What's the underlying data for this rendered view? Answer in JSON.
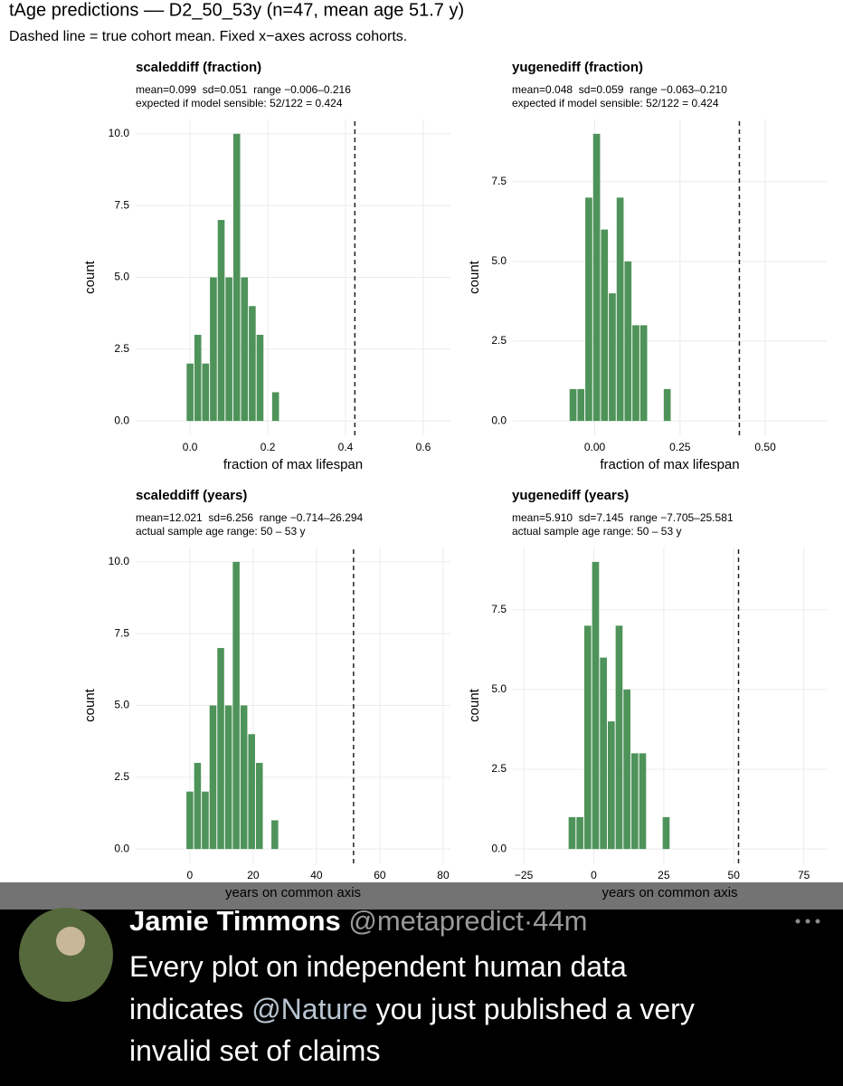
{
  "title": "tAge predictions –– D2_50_53y (n=47, mean age 51.7 y)",
  "subtitle": "Dashed line = true cohort mean. Fixed x−axes across cohorts.",
  "chart_data": [
    {
      "type": "histogram",
      "title": "scaleddiff (fraction)",
      "stats": "mean=0.099  sd=0.051  range −0.006–0.216",
      "note": "expected if model sensible: 52/122 = 0.424",
      "xlabel": "fraction of max lifespan",
      "ylabel": "count",
      "color": "#4e9359",
      "grid": true,
      "bins": [
        -0.01,
        0.01,
        0.03,
        0.05,
        0.07,
        0.09,
        0.11,
        0.13,
        0.15,
        0.17,
        0.19,
        0.21,
        0.23
      ],
      "values": [
        2,
        3,
        2,
        5,
        7,
        5,
        10,
        5,
        4,
        3,
        0,
        1
      ],
      "vline": 0.424,
      "xlim": [
        -0.14,
        0.67
      ],
      "xticks": [
        {
          "value": 0,
          "label": "0.0"
        },
        0.2,
        0.4,
        0.6
      ],
      "ylim": [
        -0.5,
        10.5
      ],
      "yticks": [
        {
          "value": 0,
          "label": "0.0"
        },
        2.5,
        {
          "value": 5,
          "label": "5.0"
        },
        7.5,
        {
          "value": 10,
          "label": "10.0"
        }
      ]
    },
    {
      "type": "histogram",
      "title": "yugenediff (fraction)",
      "stats": "mean=0.048  sd=0.059  range −0.063–0.210",
      "note": "expected if model sensible: 52/122 = 0.424",
      "xlabel": "fraction of max lifespan",
      "ylabel": "count",
      "color": "#4e9359",
      "grid": true,
      "bins": [
        -0.075,
        -0.052,
        -0.029,
        -0.006,
        0.017,
        0.04,
        0.063,
        0.086,
        0.109,
        0.132,
        0.155,
        0.178,
        0.201,
        0.224
      ],
      "values": [
        1,
        1,
        7,
        9,
        6,
        4,
        7,
        5,
        3,
        3,
        0,
        0,
        1
      ],
      "vline": 0.424,
      "xlim": [
        -0.24,
        0.68
      ],
      "xticks": [
        {
          "value": 0,
          "label": "0.00"
        },
        0.25,
        {
          "value": 0.5,
          "label": "0.50"
        }
      ],
      "ylim": [
        -0.45,
        9.45
      ],
      "yticks": [
        {
          "value": 0,
          "label": "0.0"
        },
        2.5,
        {
          "value": 5,
          "label": "5.0"
        },
        7.5
      ]
    },
    {
      "type": "histogram",
      "title": "scaleddiff (years)",
      "stats": "mean=12.021  sd=6.256  range −0.714–26.294",
      "note": "actual sample age range: 50 – 53 y",
      "xlabel": "years on common axis",
      "ylabel": "count",
      "color": "#4e9359",
      "grid": true,
      "bins": [
        -1.22,
        1.22,
        3.66,
        6.1,
        8.54,
        10.98,
        13.42,
        15.86,
        18.3,
        20.74,
        23.18,
        25.62,
        28.06
      ],
      "values": [
        2,
        3,
        2,
        5,
        7,
        5,
        10,
        5,
        4,
        3,
        0,
        1
      ],
      "vline": 51.7,
      "xlim": [
        -17.1,
        82.3
      ],
      "xticks": [
        0,
        20,
        40,
        60,
        80
      ],
      "ylim": [
        -0.5,
        10.5
      ],
      "yticks": [
        {
          "value": 0,
          "label": "0.0"
        },
        2.5,
        {
          "value": 5,
          "label": "5.0"
        },
        7.5,
        {
          "value": 10,
          "label": "10.0"
        }
      ]
    },
    {
      "type": "histogram",
      "title": "yugenediff (years)",
      "stats": "mean=5.910  sd=7.145  range −7.705–25.581",
      "note": "actual sample age range: 50 – 53 y",
      "xlabel": "years on common axis",
      "ylabel": "count",
      "color": "#4e9359",
      "grid": true,
      "bins": [
        -9.15,
        -6.35,
        -3.55,
        -0.75,
        2.05,
        4.85,
        7.65,
        10.45,
        13.25,
        16.05,
        18.85,
        21.65,
        24.45,
        27.25
      ],
      "values": [
        1,
        1,
        7,
        9,
        6,
        4,
        7,
        5,
        3,
        3,
        0,
        0,
        1
      ],
      "vline": 51.7,
      "xlim": [
        -28.9,
        83.2
      ],
      "xticks": [
        {
          "value": -25,
          "label": "−25"
        },
        0,
        25,
        50,
        75
      ],
      "ylim": [
        -0.45,
        9.45
      ],
      "yticks": [
        {
          "value": 0,
          "label": "0.0"
        },
        2.5,
        {
          "value": 5,
          "label": "5.0"
        },
        7.5
      ]
    }
  ],
  "tweet": {
    "name": "Jamie Timmons",
    "handle": "@metapredict",
    "separator": "·",
    "time": "44m",
    "line1": "Every plot on independent human data",
    "line2_start": "indicates",
    "mention": "@Nature",
    "line2_end": "you just published a very",
    "line3": "invalid set of claims"
  }
}
